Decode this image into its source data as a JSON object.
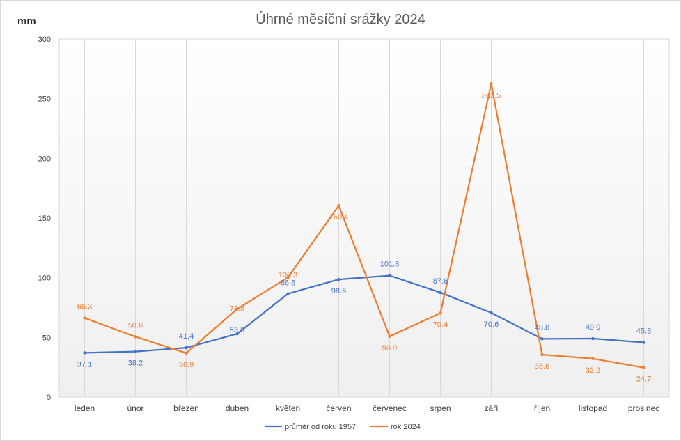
{
  "chart_data": {
    "type": "line",
    "title": "Úhrné měsíční srážky 2024",
    "ylabel": "mm",
    "xlabel": "",
    "ylim": [
      0,
      300
    ],
    "yticks": [
      0,
      50,
      100,
      150,
      200,
      250,
      300
    ],
    "categories": [
      "leden",
      "únor",
      "březen",
      "duben",
      "květen",
      "červen",
      "červenec",
      "srpen",
      "září",
      "říjen",
      "listopad",
      "prosinec"
    ],
    "series": [
      {
        "name": "průměr od roku 1957",
        "color": "#4472c4",
        "values": [
          37.1,
          38.2,
          41.4,
          53.0,
          86.6,
          98.6,
          101.8,
          87.6,
          70.6,
          48.8,
          49.0,
          45.8
        ],
        "labels": [
          "37.1",
          "38.2",
          "41.4",
          "53.0",
          "86.6",
          "98.6",
          "101.8",
          "87.6",
          "70.6",
          "48.8",
          "49.0",
          "45.8"
        ]
      },
      {
        "name": "rok 2024",
        "color": "#ed7d31",
        "values": [
          66.3,
          50.6,
          36.9,
          73.8,
          100.3,
          160.4,
          50.9,
          70.4,
          262.5,
          35.6,
          32.2,
          24.7
        ],
        "labels": [
          "66.3",
          "50.6",
          "36.9",
          "73.8",
          "100.3",
          "160.4",
          "50.9",
          "70.4",
          "262.5",
          "35.6",
          "32.2",
          "24.7"
        ]
      }
    ],
    "grid": "vertical-category-lines",
    "legend": "bottom"
  }
}
